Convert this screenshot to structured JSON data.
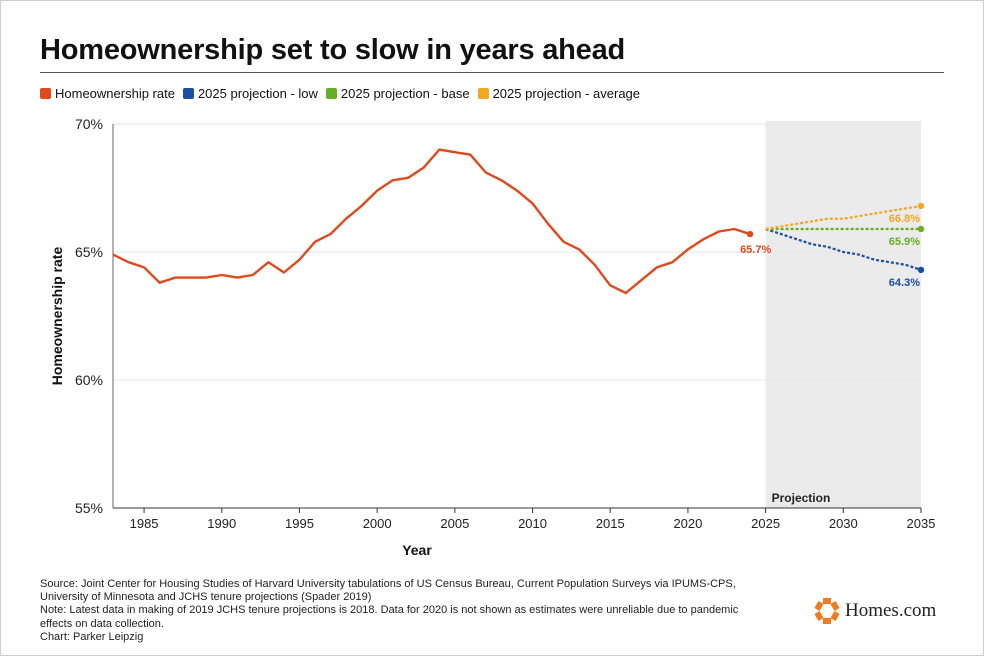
{
  "page": {
    "title": "Homeownership set to slow in years ahead"
  },
  "colors": {
    "historic": "#e0491c",
    "low": "#1a4fa3",
    "base": "#69ad24",
    "average": "#f0a81e",
    "projection_band": "#ebebeb",
    "grid": "#e4e4e4"
  },
  "legend": [
    {
      "label": "Homeownership rate",
      "color": "#e0491c"
    },
    {
      "label": "2025 projection - low",
      "color": "#1a4fa3"
    },
    {
      "label": "2025 projection - base",
      "color": "#69ad24"
    },
    {
      "label": "2025 projection - average",
      "color": "#f0a81e"
    }
  ],
  "chart_data": {
    "type": "line",
    "title": "Homeownership set to slow in years ahead",
    "xlabel": "Year",
    "ylabel": "Homeownership rate",
    "xlim": [
      1983,
      2035
    ],
    "ylim": [
      55,
      70
    ],
    "x_ticks": [
      1985,
      1990,
      1995,
      2000,
      2005,
      2010,
      2015,
      2020,
      2025,
      2030,
      2035
    ],
    "y_ticks": [
      {
        "value": 55,
        "label": "55%"
      },
      {
        "value": 60,
        "label": "60%"
      },
      {
        "value": 65,
        "label": "65%"
      },
      {
        "value": 70,
        "label": "70%"
      }
    ],
    "grid": true,
    "legend_position": "top-left",
    "projection_band": {
      "x_start": 2025,
      "x_end": 2035,
      "label": "Projection"
    },
    "series": [
      {
        "name": "Homeownership rate",
        "color": "#e0491c",
        "style": "solid",
        "end_label": "65.7%",
        "points": [
          [
            1983,
            64.9
          ],
          [
            1984,
            64.6
          ],
          [
            1985,
            64.4
          ],
          [
            1986,
            63.8
          ],
          [
            1987,
            64.0
          ],
          [
            1988,
            64.0
          ],
          [
            1989,
            64.0
          ],
          [
            1990,
            64.1
          ],
          [
            1991,
            64.0
          ],
          [
            1992,
            64.1
          ],
          [
            1993,
            64.6
          ],
          [
            1994,
            64.2
          ],
          [
            1995,
            64.7
          ],
          [
            1996,
            65.4
          ],
          [
            1997,
            65.7
          ],
          [
            1998,
            66.3
          ],
          [
            1999,
            66.8
          ],
          [
            2000,
            67.4
          ],
          [
            2001,
            67.8
          ],
          [
            2002,
            67.9
          ],
          [
            2003,
            68.3
          ],
          [
            2004,
            69.0
          ],
          [
            2005,
            68.9
          ],
          [
            2006,
            68.8
          ],
          [
            2007,
            68.1
          ],
          [
            2008,
            67.8
          ],
          [
            2009,
            67.4
          ],
          [
            2010,
            66.9
          ],
          [
            2011,
            66.1
          ],
          [
            2012,
            65.4
          ],
          [
            2013,
            65.1
          ],
          [
            2014,
            64.5
          ],
          [
            2015,
            63.7
          ],
          [
            2016,
            63.4
          ],
          [
            2017,
            63.9
          ],
          [
            2018,
            64.4
          ],
          [
            2019,
            64.6
          ],
          [
            2020,
            65.1
          ],
          [
            2021,
            65.5
          ],
          [
            2022,
            65.8
          ],
          [
            2023,
            65.9
          ],
          [
            2024,
            65.7
          ]
        ]
      },
      {
        "name": "2025 projection - low",
        "color": "#1a4fa3",
        "style": "dashed",
        "end_label": "64.3%",
        "points": [
          [
            2025,
            65.9
          ],
          [
            2026,
            65.7
          ],
          [
            2027,
            65.5
          ],
          [
            2028,
            65.3
          ],
          [
            2029,
            65.2
          ],
          [
            2030,
            65.0
          ],
          [
            2031,
            64.9
          ],
          [
            2032,
            64.7
          ],
          [
            2033,
            64.6
          ],
          [
            2034,
            64.5
          ],
          [
            2035,
            64.3
          ]
        ]
      },
      {
        "name": "2025 projection - base",
        "color": "#69ad24",
        "style": "dashed",
        "end_label": "65.9%",
        "points": [
          [
            2025,
            65.9
          ],
          [
            2035,
            65.9
          ]
        ]
      },
      {
        "name": "2025 projection - average",
        "color": "#f0a81e",
        "style": "dashed",
        "end_label": "66.8%",
        "points": [
          [
            2025,
            65.9
          ],
          [
            2026,
            66.0
          ],
          [
            2027,
            66.1
          ],
          [
            2028,
            66.2
          ],
          [
            2029,
            66.3
          ],
          [
            2030,
            66.3
          ],
          [
            2031,
            66.4
          ],
          [
            2032,
            66.5
          ],
          [
            2033,
            66.6
          ],
          [
            2034,
            66.7
          ],
          [
            2035,
            66.8
          ]
        ]
      }
    ]
  },
  "footer": {
    "lines": [
      "Source: Joint Center for Housing Studies of Harvard University tabulations of US Census Bureau, Current Population Surveys via IPUMS-CPS,",
      "University of Minnesota and JCHS tenure projections (Spader 2019)",
      "Note: Latest data in making of 2019 JCHS tenure projections is 2018. Data for 2020 is not shown as estimates were unreliable due to pandemic",
      "effects on data collection.",
      "Chart: Parker Leipzig"
    ]
  },
  "brand": {
    "name": "Homes.com",
    "icon": "homes-logo-icon",
    "color": "#f07c1f"
  }
}
